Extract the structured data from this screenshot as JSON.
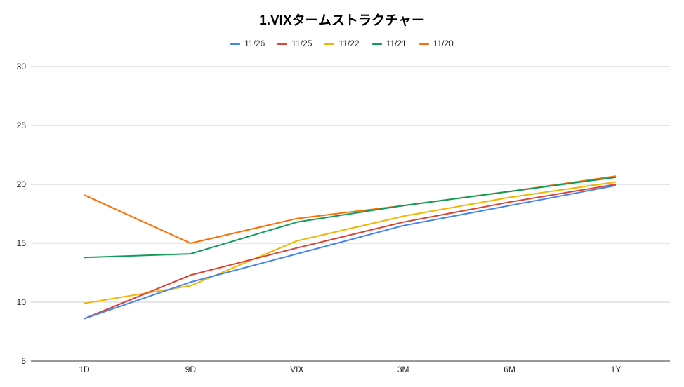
{
  "title": "1.VIXタームストラクチャー",
  "chart_data": {
    "type": "line",
    "title": "1.VIXタームストラクチャー",
    "xlabel": "",
    "ylabel": "",
    "categories": [
      "1D",
      "9D",
      "VIX",
      "3M",
      "6M",
      "1Y"
    ],
    "ylim": [
      5,
      30
    ],
    "yticks": [
      5,
      10,
      15,
      20,
      25,
      30
    ],
    "grid": true,
    "legend_position": "top",
    "series": [
      {
        "name": "11/26",
        "color": "#4285f4",
        "values": [
          8.6,
          11.7,
          14.1,
          16.5,
          18.2,
          19.9
        ]
      },
      {
        "name": "11/25",
        "color": "#db4437",
        "values": [
          8.6,
          12.3,
          14.6,
          16.8,
          18.5,
          20.0
        ]
      },
      {
        "name": "11/22",
        "color": "#f4b400",
        "values": [
          9.9,
          11.4,
          15.2,
          17.3,
          18.9,
          20.2
        ]
      },
      {
        "name": "11/21",
        "color": "#0f9d58",
        "values": [
          13.8,
          14.1,
          16.8,
          18.2,
          19.4,
          20.6
        ]
      },
      {
        "name": "11/20",
        "color": "#ff6d01",
        "values": [
          19.1,
          15.0,
          17.1,
          18.2,
          19.4,
          20.7
        ]
      }
    ]
  }
}
